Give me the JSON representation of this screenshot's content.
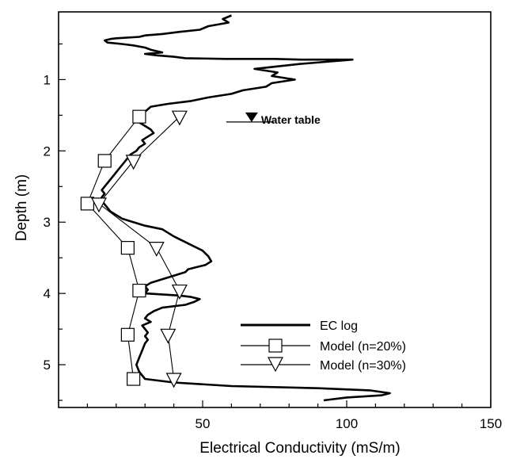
{
  "chart_data": {
    "type": "line",
    "xlabel": "Electrical Conductivity (mS/m)",
    "ylabel": "Depth (m)",
    "xlim": [
      0,
      150
    ],
    "ylim": [
      5.6,
      0.05
    ],
    "y_inverted": true,
    "x_ticks_major": [
      50,
      100,
      150
    ],
    "x_ticks_minor": [
      10,
      20,
      30,
      40,
      60,
      70,
      80,
      90,
      110,
      120,
      130,
      140
    ],
    "y_ticks_major": [
      1,
      2,
      3,
      4,
      5
    ],
    "y_ticks_minor": [
      0.5,
      1.5,
      2.5,
      3.5,
      4.5,
      5.5
    ],
    "grid": false,
    "legend_position": "bottom-right",
    "series": [
      {
        "name": "EC log",
        "style": "thick-line",
        "color": "#000000",
        "x": [
          60,
          57,
          59,
          52,
          49,
          42,
          36,
          30,
          28,
          20,
          18,
          16,
          17,
          22,
          26,
          30,
          32,
          34,
          36,
          30,
          34,
          40,
          44,
          58,
          75,
          84,
          102,
          84,
          68,
          76,
          74,
          82,
          74,
          72,
          64,
          60,
          52,
          46,
          38,
          32,
          30,
          29,
          28,
          30,
          32,
          33,
          31,
          29,
          30,
          28,
          27,
          25,
          24,
          23,
          22,
          21,
          20,
          19,
          18,
          17,
          16,
          15,
          16,
          15,
          15,
          16,
          17,
          18,
          20,
          22,
          26,
          30,
          36,
          40,
          45,
          50,
          52,
          53,
          51,
          48,
          45,
          44,
          40,
          36,
          32,
          30,
          31,
          30,
          42,
          46,
          49,
          47,
          44,
          36,
          33,
          31,
          30,
          32,
          29,
          30,
          31,
          30,
          31,
          30,
          29,
          28,
          27,
          28,
          30,
          40,
          60,
          90,
          108,
          115,
          112,
          100,
          92
        ],
        "y": [
          0.1,
          0.15,
          0.2,
          0.25,
          0.3,
          0.33,
          0.36,
          0.38,
          0.4,
          0.42,
          0.43,
          0.45,
          0.48,
          0.5,
          0.52,
          0.55,
          0.58,
          0.6,
          0.62,
          0.64,
          0.66,
          0.68,
          0.7,
          0.71,
          0.71,
          0.72,
          0.72,
          0.78,
          0.85,
          0.9,
          0.95,
          1.0,
          1.05,
          1.1,
          1.15,
          1.2,
          1.25,
          1.3,
          1.34,
          1.38,
          1.45,
          1.55,
          1.6,
          1.65,
          1.7,
          1.75,
          1.8,
          1.85,
          1.9,
          1.95,
          2.0,
          2.05,
          2.1,
          2.15,
          2.2,
          2.25,
          2.3,
          2.35,
          2.4,
          2.45,
          2.5,
          2.55,
          2.6,
          2.65,
          2.7,
          2.75,
          2.8,
          2.85,
          2.9,
          2.95,
          3.0,
          3.05,
          3.1,
          3.2,
          3.3,
          3.4,
          3.48,
          3.55,
          3.6,
          3.63,
          3.66,
          3.7,
          3.75,
          3.8,
          3.85,
          3.9,
          3.95,
          4.0,
          4.03,
          4.05,
          4.08,
          4.12,
          4.16,
          4.2,
          4.25,
          4.3,
          4.35,
          4.4,
          4.45,
          4.5,
          4.55,
          4.6,
          4.65,
          4.7,
          4.8,
          4.9,
          5.0,
          5.1,
          5.2,
          5.25,
          5.3,
          5.33,
          5.36,
          5.4,
          5.43,
          5.46,
          5.5
        ]
      },
      {
        "name": "Model (n=20%)",
        "style": "line-square",
        "color": "#000000",
        "x": [
          28,
          16,
          10,
          24,
          28,
          24,
          26
        ],
        "y": [
          1.52,
          2.14,
          2.74,
          3.36,
          3.96,
          4.58,
          5.2
        ]
      },
      {
        "name": "Model (n=30%)",
        "style": "line-triangle-down",
        "color": "#000000",
        "x": [
          42,
          26,
          14,
          34,
          42,
          38,
          40
        ],
        "y": [
          1.52,
          2.14,
          2.74,
          3.36,
          3.96,
          4.58,
          5.2
        ]
      }
    ],
    "annotations": [
      {
        "text": "Water table",
        "x": 67,
        "y": 1.55
      }
    ]
  }
}
